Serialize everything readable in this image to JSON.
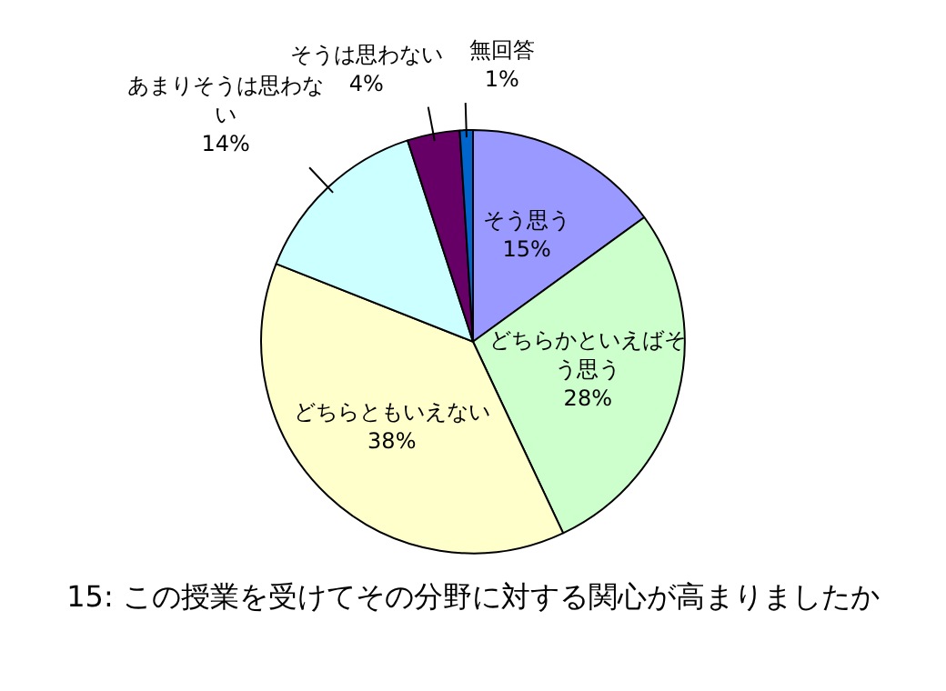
{
  "chart_data": {
    "type": "pie",
    "title": "15: この授業を受けてその分野に対する関心が高まりましたか",
    "categories": [
      "そう思う",
      "どちらかといえばそう思う",
      "どちらともいえない",
      "あまりそうは思わない",
      "そうは思わない",
      "無回答"
    ],
    "values": [
      15,
      28,
      38,
      14,
      4,
      1
    ],
    "colors": [
      "#9999ff",
      "#ccffcc",
      "#ffffcc",
      "#ccffff",
      "#660066",
      "#0066cc"
    ],
    "value_labels": [
      "15%",
      "28%",
      "38%",
      "14%",
      "4%",
      "1%"
    ],
    "legend": false
  }
}
